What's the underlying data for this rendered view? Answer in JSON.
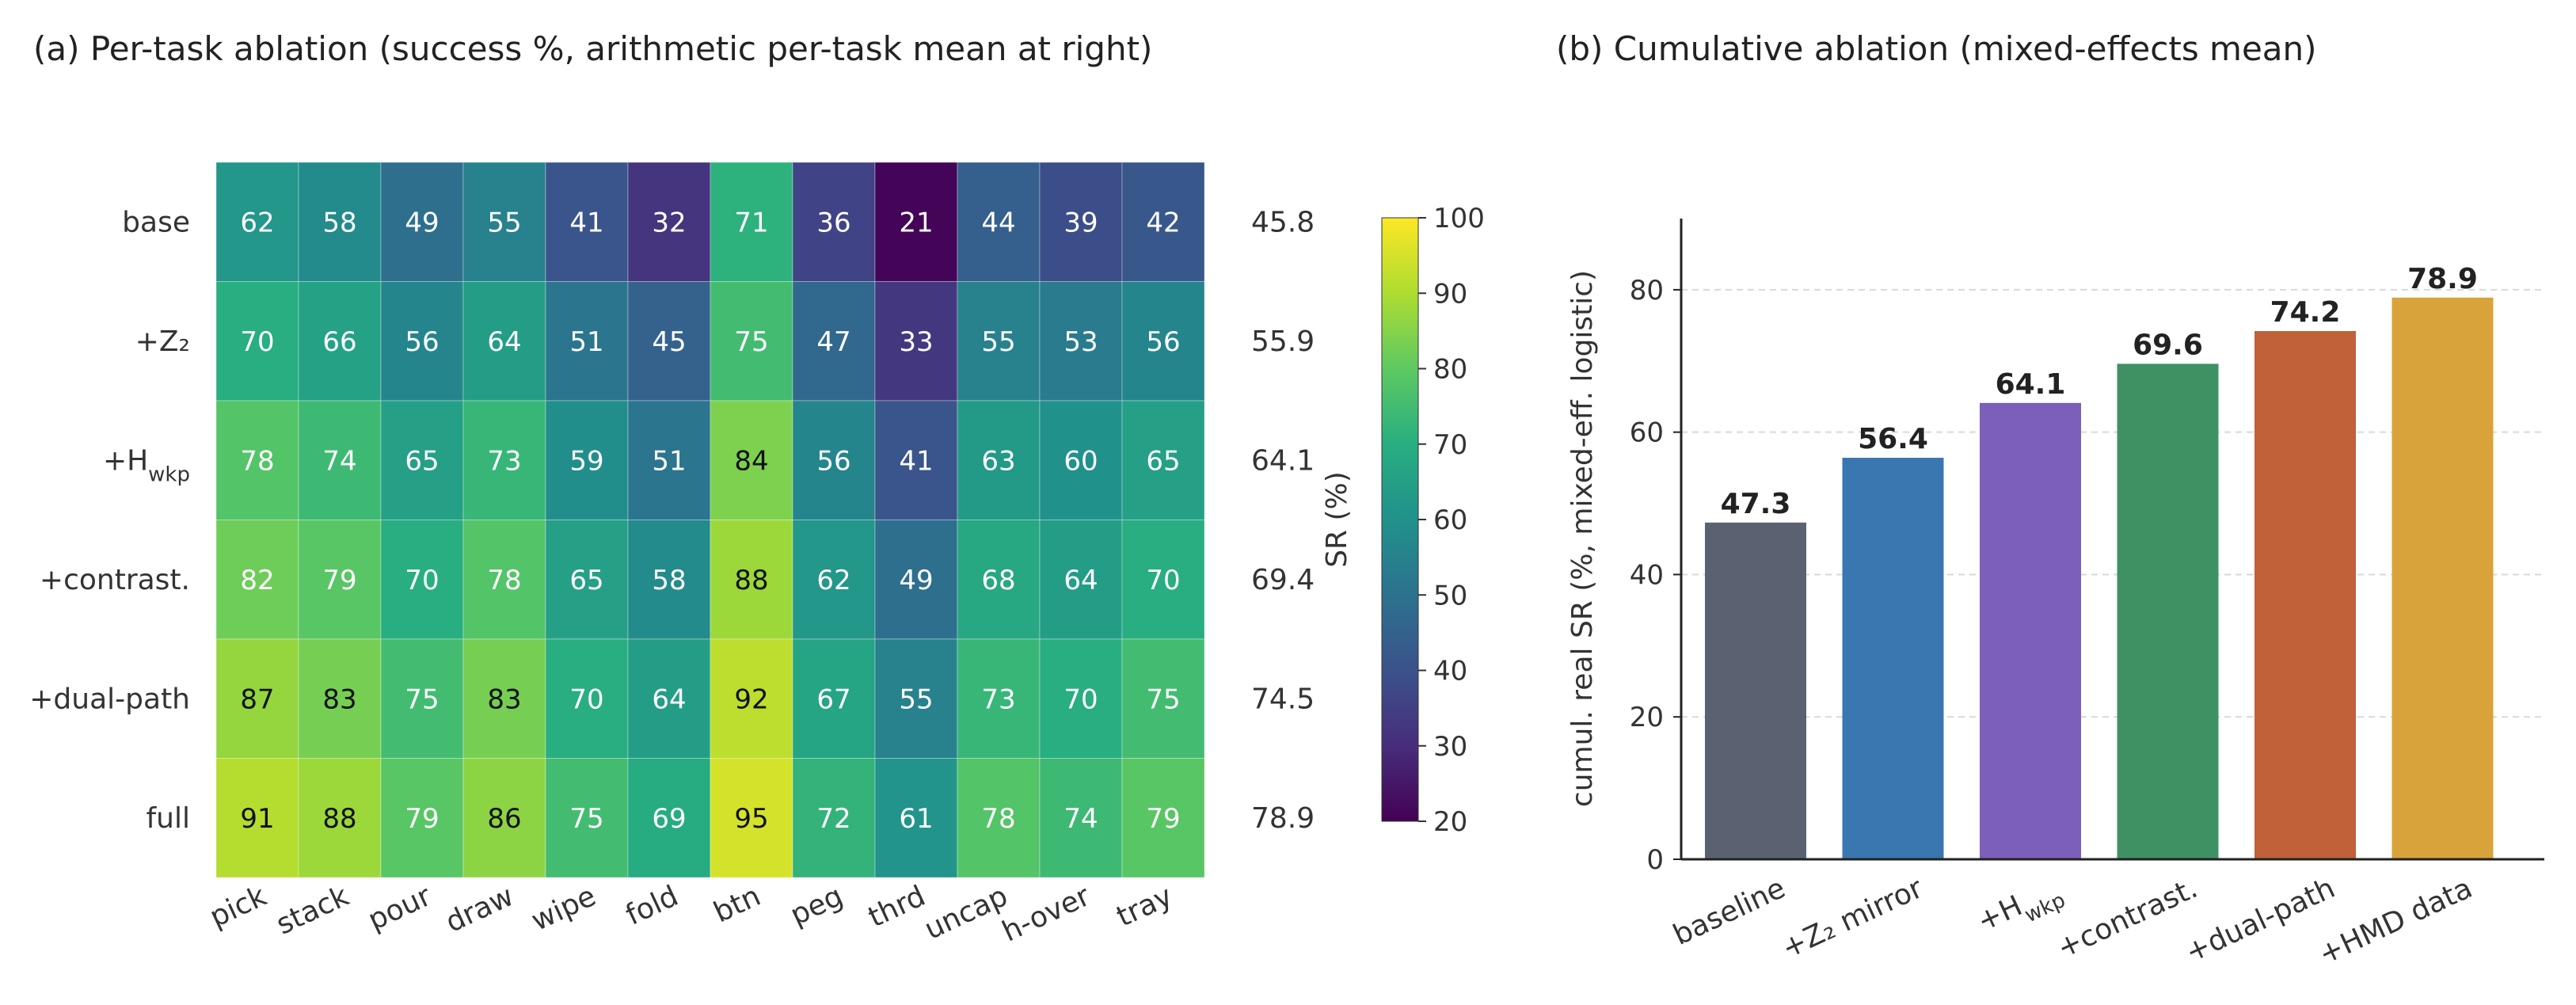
{
  "chart_data": [
    {
      "type": "heatmap",
      "title": "(a) Per-task ablation (success %, arithmetic per-task mean at right)",
      "rows": [
        "base",
        "+Z₂",
        "+H",
        "+contrast.",
        "+dual-path",
        "full"
      ],
      "row_subscripts": [
        "",
        "",
        "wkp",
        "",
        "",
        ""
      ],
      "columns": [
        "pick",
        "stack",
        "pour",
        "draw",
        "wipe",
        "fold",
        "btn",
        "peg",
        "thrd",
        "uncap",
        "h-over",
        "tray"
      ],
      "values": [
        [
          62,
          58,
          49,
          55,
          41,
          32,
          71,
          36,
          21,
          44,
          39,
          42
        ],
        [
          70,
          66,
          56,
          64,
          51,
          45,
          75,
          47,
          33,
          55,
          53,
          56
        ],
        [
          78,
          74,
          65,
          73,
          59,
          51,
          84,
          56,
          41,
          63,
          60,
          65
        ],
        [
          82,
          79,
          70,
          78,
          65,
          58,
          88,
          62,
          49,
          68,
          64,
          70
        ],
        [
          87,
          83,
          75,
          83,
          70,
          64,
          92,
          67,
          55,
          73,
          70,
          75
        ],
        [
          91,
          88,
          79,
          86,
          75,
          69,
          95,
          72,
          61,
          78,
          74,
          79
        ]
      ],
      "row_means": [
        "45.8",
        "55.9",
        "64.1",
        "69.4",
        "74.5",
        "78.9"
      ],
      "colorbar": {
        "label": "SR (%)",
        "min": 20,
        "max": 100,
        "ticks": [
          20,
          30,
          40,
          50,
          60,
          70,
          80,
          90,
          100
        ],
        "colormap": "viridis"
      }
    },
    {
      "type": "bar",
      "title": "(b) Cumulative ablation (mixed-effects mean)",
      "categories": [
        "baseline",
        "+Z₂ mirror",
        "+H",
        "+contrast.",
        "+dual-path",
        "+HMD data"
      ],
      "category_subscripts": [
        "",
        "",
        "wkp",
        "",
        "",
        ""
      ],
      "values": [
        47.3,
        56.4,
        64.1,
        69.6,
        74.2,
        78.9
      ],
      "value_labels": [
        "47.3",
        "56.4",
        "64.1",
        "69.6",
        "74.2",
        "78.9"
      ],
      "colors": [
        "#5a6272",
        "#3a76b0",
        "#7b5fb8",
        "#3f9163",
        "#c0613a",
        "#d8a33a"
      ],
      "ylabel": "cumul. real SR (%, mixed-eff. logistic)",
      "ylim": [
        0,
        90
      ],
      "yticks": [
        0,
        20,
        40,
        60,
        80
      ],
      "grid": true
    }
  ]
}
